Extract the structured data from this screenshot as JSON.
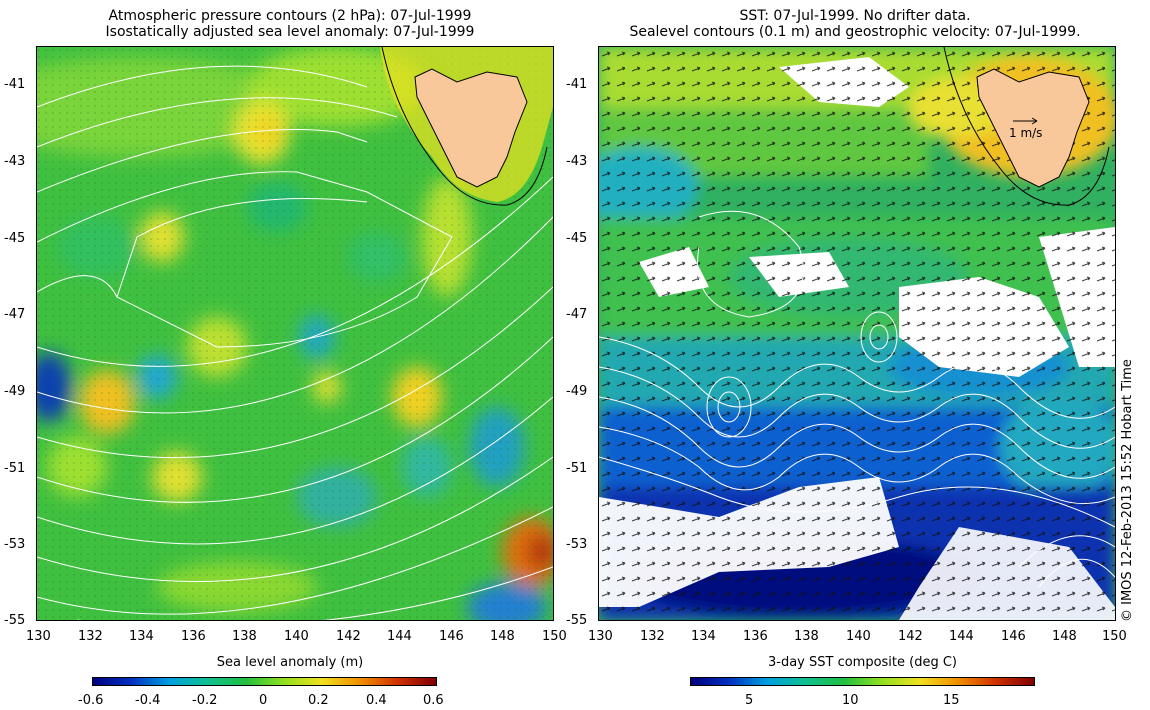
{
  "left_panel": {
    "title_line1": "Atmospheric pressure contours (2 hPa): 07-Jul-1999",
    "title_line2": "Isostatically adjusted sea level anomaly: 07-Jul-1999",
    "colorbar": {
      "label": "Sea level anomaly (m)",
      "ticks": [
        "-0.6",
        "-0.4",
        "-0.2",
        "0",
        "0.2",
        "0.4",
        "0.6"
      ],
      "colormap": [
        "#00007f",
        "#0030c0",
        "#00a0e0",
        "#10c090",
        "#20c040",
        "#90e020",
        "#f0e020",
        "#f09000",
        "#d03000",
        "#800000"
      ]
    }
  },
  "right_panel": {
    "title_line1": "SST: 07-Jul-1999. No drifter data.",
    "title_line2": "Sealevel contours (0.1 m) and geostrophic velocity: 07-Jul-1999.",
    "velocity_scale_label": "1 m/s",
    "colorbar": {
      "label": "3-day SST composite (deg C)",
      "ticks": [
        "5",
        "10",
        "15"
      ],
      "colormap": [
        "#00007f",
        "#0030c0",
        "#00a0e0",
        "#10c090",
        "#20c040",
        "#90e020",
        "#f0e020",
        "#f09000",
        "#d03000",
        "#800000"
      ]
    }
  },
  "axes": {
    "x_ticks": [
      "130",
      "132",
      "134",
      "136",
      "138",
      "140",
      "142",
      "144",
      "146",
      "148",
      "150"
    ],
    "y_ticks": [
      "-41",
      "-43",
      "-45",
      "-47",
      "-49",
      "-51",
      "-53",
      "-55"
    ]
  },
  "credit": "© IMOS 12-Feb-2013 15:52 Hobart Time",
  "colors": {
    "land": "#f8c89a",
    "contour": "#ffffff",
    "frame": "#000000"
  }
}
